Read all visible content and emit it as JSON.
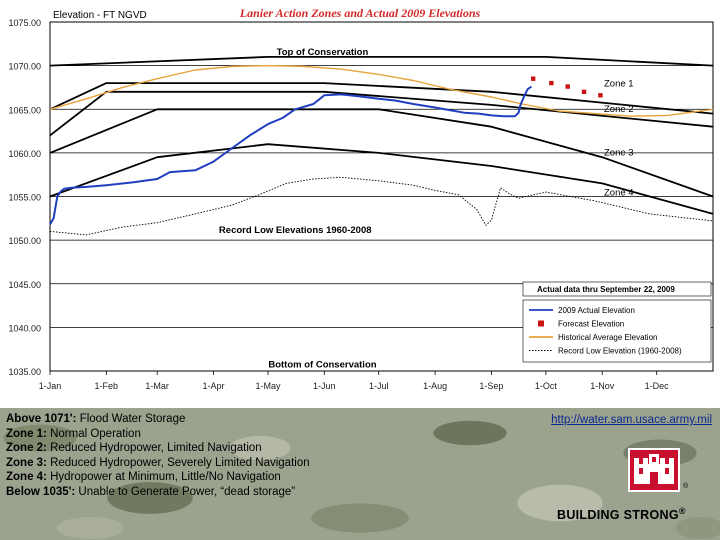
{
  "chart_data": {
    "type": "line",
    "title": "Lanier Action Zones and Actual 2009 Elevations",
    "ylabel": "Elevation - FT NGVD",
    "ylim": [
      1035,
      1075
    ],
    "y_ticks": [
      "1075.00",
      "1070.00",
      "1065.00",
      "1060.00",
      "1055.00",
      "1050.00",
      "1045.00",
      "1040.00",
      "1035.00"
    ],
    "y_tick_values": [
      1075,
      1070,
      1065,
      1060,
      1055,
      1050,
      1045,
      1040,
      1035
    ],
    "x_ticks": [
      "1-Jan",
      "1-Feb",
      "1-Mar",
      "1-Apr",
      "1-May",
      "1-Jun",
      "1-Jul",
      "1-Aug",
      "1-Sep",
      "1-Oct",
      "1-Nov",
      "1-Dec"
    ],
    "x_tick_days": [
      0,
      31,
      59,
      90,
      120,
      151,
      181,
      212,
      243,
      273,
      304,
      334
    ],
    "xlim_days": [
      0,
      365
    ],
    "annotations": [
      {
        "text": "Top of Conservation",
        "day": 150,
        "y": 1071.2
      },
      {
        "text": "Zone 1",
        "day": 305,
        "y": 1067.6
      },
      {
        "text": "Zone 2",
        "day": 305,
        "y": 1064.7
      },
      {
        "text": "Zone 3",
        "day": 305,
        "y": 1059.7
      },
      {
        "text": "Zone 4",
        "day": 305,
        "y": 1055.1
      },
      {
        "text": "Record Low Elevations 1960-2008",
        "day": 135,
        "y": 1050.8
      },
      {
        "text": "Bottom of Conservation",
        "day": 150,
        "y": 1035.4
      }
    ],
    "note": "Actual data thru September 22, 2009",
    "legend": [
      {
        "label": "2009 Actual Elevation",
        "color": "#1f3fbf",
        "style": "solid"
      },
      {
        "label": "Forecast Elevation",
        "color": "#cc1111",
        "style": "square"
      },
      {
        "label": "Historical Average Elevation",
        "color": "#e8a33d",
        "style": "solid"
      },
      {
        "label": "Record Low Elevation (1960-2008)",
        "color": "#000000",
        "style": "dotted"
      }
    ],
    "series": [
      {
        "name": "Top of Conservation",
        "color": "#000000",
        "x": [
          0,
          120,
          273,
          365
        ],
        "y": [
          1070,
          1071,
          1071,
          1070
        ]
      },
      {
        "name": "Zone 1 boundary",
        "color": "#000000",
        "x": [
          0,
          31,
          151,
          243,
          365
        ],
        "y": [
          1065,
          1068,
          1068,
          1067,
          1064.5
        ]
      },
      {
        "name": "Zone 2 boundary",
        "color": "#000000",
        "x": [
          0,
          31,
          151,
          243,
          365
        ],
        "y": [
          1062,
          1067,
          1067,
          1065.5,
          1063
        ]
      },
      {
        "name": "Zone 3 boundary",
        "color": "#000000",
        "x": [
          0,
          59,
          181,
          243,
          304,
          365
        ],
        "y": [
          1060,
          1065,
          1065,
          1063,
          1059.5,
          1055
        ]
      },
      {
        "name": "Zone 4 boundary",
        "color": "#000000",
        "x": [
          0,
          59,
          120,
          181,
          243,
          304,
          365
        ],
        "y": [
          1055,
          1059.5,
          1061,
          1060,
          1058.5,
          1056.5,
          1053
        ]
      },
      {
        "name": "Historical Average Elevation",
        "color": "#e8a33d",
        "x": [
          0,
          20,
          40,
          59,
          80,
          100,
          120,
          140,
          160,
          181,
          200,
          220,
          243,
          260,
          280,
          300,
          320,
          340,
          365
        ],
        "y": [
          1065,
          1066.2,
          1067.5,
          1068.5,
          1069.5,
          1069.9,
          1070,
          1069.9,
          1069.6,
          1069,
          1068.3,
          1067.3,
          1066.4,
          1065.6,
          1064.8,
          1064.5,
          1064.2,
          1064.3,
          1065
        ]
      },
      {
        "name": "2009 Actual Elevation",
        "color": "#1f3fbf",
        "x": [
          0,
          2,
          4,
          6,
          8,
          12,
          20,
          31,
          45,
          59,
          66,
          80,
          90,
          100,
          110,
          120,
          128,
          135,
          145,
          151,
          160,
          170,
          181,
          190,
          200,
          212,
          220,
          228,
          236,
          243,
          250,
          256,
          258,
          259,
          261,
          263,
          265
        ],
        "y": [
          1051.8,
          1052.5,
          1055,
          1055.6,
          1055.9,
          1056.0,
          1056.1,
          1056.3,
          1056.6,
          1057.0,
          1057.8,
          1058.0,
          1059.0,
          1060.5,
          1062.0,
          1063.3,
          1064.0,
          1065.0,
          1065.6,
          1066.6,
          1066.7,
          1066.5,
          1066.2,
          1066.0,
          1065.6,
          1065.2,
          1064.9,
          1064.6,
          1064.5,
          1064.3,
          1064.2,
          1064.2,
          1064.6,
          1065.5,
          1066.5,
          1067.3,
          1067.6
        ]
      },
      {
        "name": "Forecast Elevation",
        "color": "#cc1111",
        "x": [
          266,
          276,
          285,
          294,
          303
        ],
        "y": [
          1068.5,
          1068.0,
          1067.6,
          1067.0,
          1066.6
        ]
      },
      {
        "name": "Record Low Elevation (1960-2008)",
        "color": "#000000",
        "x": [
          0,
          20,
          40,
          59,
          80,
          100,
          115,
          130,
          145,
          160,
          181,
          200,
          212,
          225,
          235,
          240,
          243,
          248,
          253,
          258,
          273,
          300,
          330,
          365
        ],
        "y": [
          1051,
          1050.6,
          1051.5,
          1052,
          1053,
          1054,
          1055.2,
          1056.5,
          1057,
          1057.2,
          1056.8,
          1056.3,
          1055.7,
          1055.2,
          1053.5,
          1051.7,
          1052.3,
          1056,
          1055.3,
          1054.8,
          1055.5,
          1054.5,
          1053,
          1052.2
        ]
      }
    ]
  },
  "info_panel": {
    "zones": [
      {
        "label": "Above 1071':",
        "text": " Flood Water Storage"
      },
      {
        "label": "Zone 1:",
        "text": " Normal Operation"
      },
      {
        "label": "Zone 2:",
        "text": " Reduced Hydropower, Limited Navigation"
      },
      {
        "label": "Zone 3:",
        "text": " Reduced Hydropower, Severely Limited Navigation"
      },
      {
        "label": "Zone 4:",
        "text": " Hydropower at Minimum, Little/No Navigation"
      },
      {
        "label": "Below 1035':",
        "text": " Unable to Generate Power, “dead storage”"
      }
    ],
    "url": "http://water.sam.usace.army.mil",
    "tagline": "BUILDING STRONG",
    "reg_mark": "®",
    "logo": "usace-castle-icon"
  }
}
